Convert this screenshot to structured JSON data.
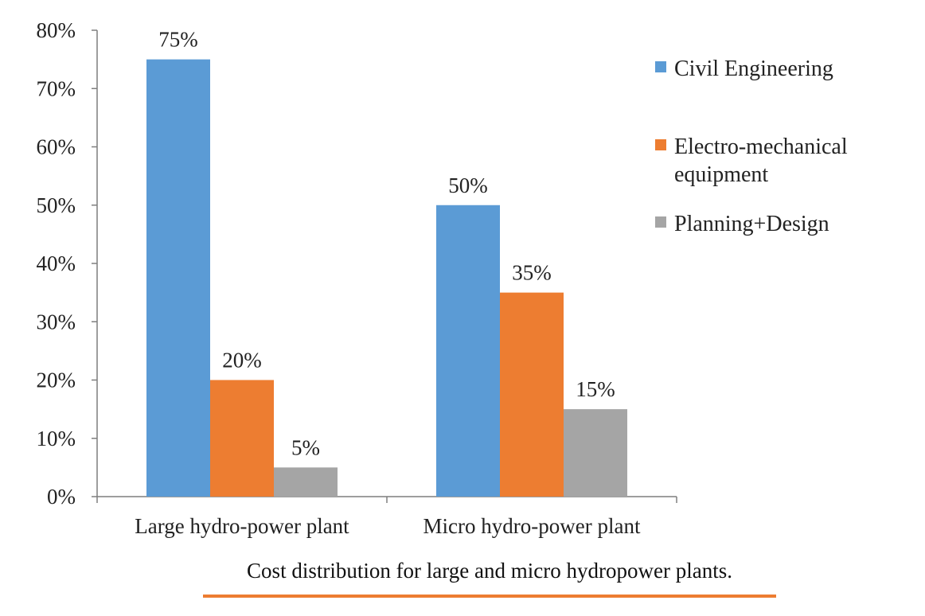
{
  "chart_data": {
    "type": "bar",
    "categories": [
      "Large hydro-power plant",
      "Micro hydro-power plant"
    ],
    "series": [
      {
        "name": "Civil Engineering",
        "values": [
          75,
          50
        ],
        "color": "#5b9bd5"
      },
      {
        "name": "Electro-mechanical equipment",
        "values": [
          20,
          35
        ],
        "color": "#ed7d31"
      },
      {
        "name": "Planning+Design",
        "values": [
          5,
          15
        ],
        "color": "#a5a5a5"
      }
    ],
    "value_labels": [
      [
        "75%",
        "50%"
      ],
      [
        "20%",
        "35%"
      ],
      [
        "5%",
        "15%"
      ]
    ],
    "y_ticks": [
      "0%",
      "10%",
      "20%",
      "30%",
      "40%",
      "50%",
      "60%",
      "70%",
      "80%"
    ],
    "ylim": [
      0,
      80
    ],
    "unit": "%",
    "grid": false,
    "legend_position": "right",
    "title": "",
    "xlabel": "",
    "ylabel": ""
  },
  "caption": "Cost distribution for large and micro hydropower plants.",
  "colors": {
    "caption_underline": "#ed7d31",
    "axis": "#7f7f7f"
  }
}
